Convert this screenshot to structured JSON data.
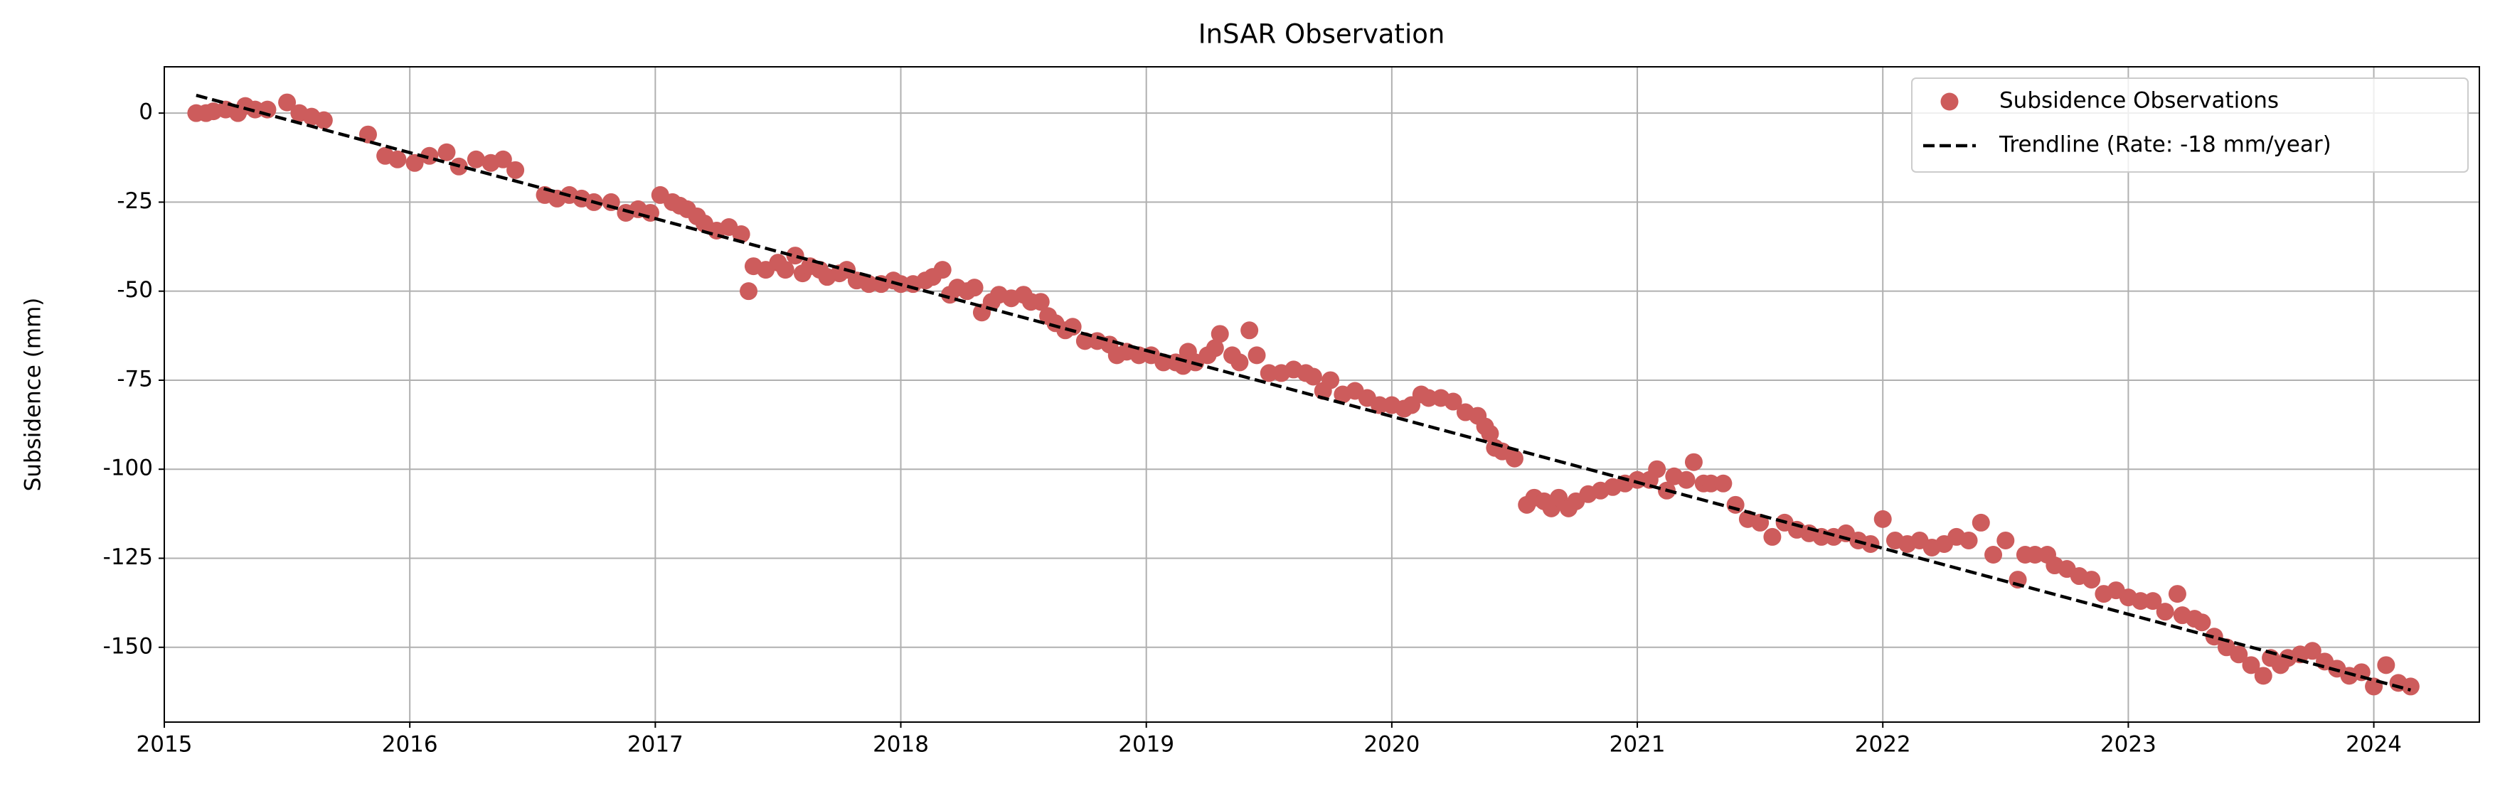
{
  "chart_data": {
    "type": "scatter",
    "title": "InSAR Observation",
    "y_label": "Subsidence (mm)",
    "xlim": [
      2015,
      2024.43
    ],
    "xticks": [
      2015,
      2016,
      2017,
      2018,
      2019,
      2020,
      2021,
      2022,
      2023,
      2024
    ],
    "ylim": [
      -171,
      13
    ],
    "yticks": [
      0,
      -25,
      -50,
      -75,
      -100,
      -125,
      -150
    ],
    "grid": true,
    "legend": "upper right",
    "series": [
      {
        "name": "Subsidence Observations",
        "color": "#cd5c5c",
        "marker": "circle",
        "x": [
          2015.13,
          2015.17,
          2015.2,
          2015.25,
          2015.3,
          2015.33,
          2015.37,
          2015.42,
          2015.5,
          2015.55,
          2015.6,
          2015.65,
          2015.83,
          2015.9,
          2015.95,
          2016.02,
          2016.08,
          2016.15,
          2016.2,
          2016.27,
          2016.33,
          2016.38,
          2016.43,
          2016.55,
          2016.6,
          2016.65,
          2016.7,
          2016.75,
          2016.82,
          2016.88,
          2016.93,
          2016.98,
          2017.02,
          2017.07,
          2017.1,
          2017.13,
          2017.17,
          2017.2,
          2017.25,
          2017.3,
          2017.35,
          2017.38,
          2017.4,
          2017.45,
          2017.5,
          2017.53,
          2017.57,
          2017.6,
          2017.63,
          2017.67,
          2017.7,
          2017.75,
          2017.78,
          2017.82,
          2017.87,
          2017.92,
          2017.97,
          2018.0,
          2018.05,
          2018.1,
          2018.13,
          2018.17,
          2018.2,
          2018.23,
          2018.27,
          2018.3,
          2018.33,
          2018.37,
          2018.4,
          2018.45,
          2018.5,
          2018.53,
          2018.57,
          2018.6,
          2018.63,
          2018.67,
          2018.7,
          2018.75,
          2018.8,
          2018.85,
          2018.88,
          2018.92,
          2018.97,
          2019.02,
          2019.07,
          2019.12,
          2019.15,
          2019.17,
          2019.2,
          2019.25,
          2019.28,
          2019.3,
          2019.35,
          2019.38,
          2019.42,
          2019.45,
          2019.5,
          2019.55,
          2019.6,
          2019.65,
          2019.68,
          2019.72,
          2019.75,
          2019.8,
          2019.85,
          2019.9,
          2019.95,
          2020.0,
          2020.05,
          2020.08,
          2020.12,
          2020.15,
          2020.2,
          2020.25,
          2020.3,
          2020.35,
          2020.38,
          2020.4,
          2020.42,
          2020.45,
          2020.5,
          2020.55,
          2020.58,
          2020.62,
          2020.65,
          2020.68,
          2020.72,
          2020.75,
          2020.8,
          2020.85,
          2020.9,
          2020.95,
          2021.0,
          2021.05,
          2021.08,
          2021.12,
          2021.15,
          2021.2,
          2021.23,
          2021.27,
          2021.3,
          2021.35,
          2021.4,
          2021.45,
          2021.5,
          2021.55,
          2021.6,
          2021.65,
          2021.7,
          2021.75,
          2021.8,
          2021.85,
          2021.9,
          2021.95,
          2022.0,
          2022.05,
          2022.1,
          2022.15,
          2022.2,
          2022.25,
          2022.3,
          2022.35,
          2022.4,
          2022.45,
          2022.5,
          2022.55,
          2022.58,
          2022.62,
          2022.67,
          2022.7,
          2022.75,
          2022.8,
          2022.85,
          2022.9,
          2022.95,
          2023.0,
          2023.05,
          2023.1,
          2023.15,
          2023.2,
          2023.22,
          2023.27,
          2023.3,
          2023.35,
          2023.4,
          2023.45,
          2023.5,
          2023.55,
          2023.58,
          2023.62,
          2023.65,
          2023.7,
          2023.75,
          2023.8,
          2023.85,
          2023.9,
          2023.95,
          2024.0,
          2024.05,
          2024.1,
          2024.15
        ],
        "values": [
          0,
          0,
          0.5,
          1,
          0,
          2,
          1,
          1,
          3,
          0,
          -1,
          -2,
          -6,
          -12,
          -13,
          -14,
          -12,
          -11,
          -15,
          -13,
          -14,
          -13,
          -16,
          -23,
          -24,
          -23,
          -24,
          -25,
          -25,
          -28,
          -27,
          -28,
          -23,
          -25,
          -26,
          -27,
          -29,
          -31,
          -33,
          -32,
          -34,
          -50,
          -43,
          -44,
          -42,
          -44,
          -40,
          -45,
          -43,
          -44,
          -46,
          -45,
          -44,
          -47,
          -48,
          -48,
          -47,
          -48,
          -48,
          -47,
          -46,
          -44,
          -51,
          -49,
          -50,
          -49,
          -56,
          -53,
          -51,
          -52,
          -51,
          -53,
          -53,
          -57,
          -59,
          -61,
          -60,
          -64,
          -64,
          -65,
          -68,
          -67,
          -68,
          -68,
          -70,
          -70,
          -71,
          -67,
          -70,
          -68,
          -66,
          -62,
          -68,
          -70,
          -61,
          -68,
          -73,
          -73,
          -72,
          -73,
          -74,
          -78,
          -75,
          -79,
          -78,
          -80,
          -82,
          -82,
          -83,
          -82,
          -79,
          -80,
          -80,
          -81,
          -84,
          -85,
          -88,
          -90,
          -94,
          -95,
          -97,
          -110,
          -108,
          -109,
          -111,
          -108,
          -111,
          -109,
          -107,
          -106,
          -105,
          -104,
          -103,
          -103,
          -100,
          -106,
          -102,
          -103,
          -98,
          -104,
          -104,
          -104,
          -110,
          -114,
          -115,
          -119,
          -115,
          -117,
          -118,
          -119,
          -119,
          -118,
          -120,
          -121,
          -114,
          -120,
          -121,
          -120,
          -122,
          -121,
          -119,
          -120,
          -115,
          -124,
          -120,
          -131,
          -124,
          -124,
          -124,
          -127,
          -128,
          -130,
          -131,
          -135,
          -134,
          -136,
          -137,
          -137,
          -140,
          -135,
          -141,
          -142,
          -143,
          -147,
          -150,
          -152,
          -155,
          -158,
          -153,
          -155,
          -153,
          -152,
          -151,
          -154,
          -156,
          -158,
          -157,
          -161,
          -155,
          -160,
          -161
        ]
      },
      {
        "name": "Trendline (Rate: -18 mm/year)",
        "color": "#000000",
        "linestyle": "dashed",
        "x": [
          2015.13,
          2024.15
        ],
        "values": [
          5,
          -162
        ]
      }
    ]
  }
}
